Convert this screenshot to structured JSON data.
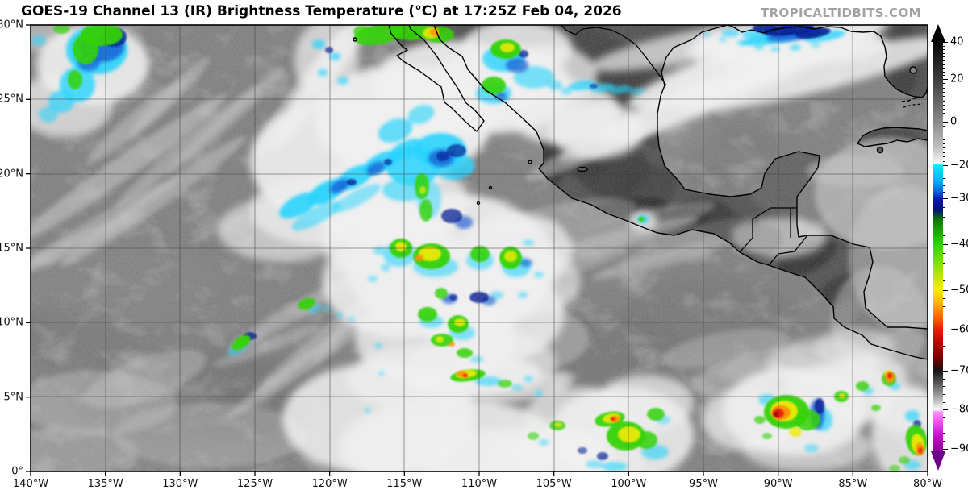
{
  "header": {
    "title": "GOES-19 Channel 13 (IR) Brightness Temperature (°C) at 17:25Z Feb 04, 2026",
    "watermark": "TROPICALTIDBITS.COM"
  },
  "axes": {
    "lat_labels": [
      "30°N",
      "25°N",
      "20°N",
      "15°N",
      "10°N",
      "5°N",
      "0°"
    ],
    "lon_labels": [
      "140°W",
      "135°W",
      "130°W",
      "125°W",
      "120°W",
      "115°W",
      "110°W",
      "105°W",
      "100°W",
      "95°W",
      "90°W",
      "85°W",
      "80°W"
    ]
  },
  "colorbar": {
    "unit": "°C",
    "ticks": [
      {
        "label": "40",
        "value": 40,
        "pos": 0.0
      },
      {
        "label": "20",
        "value": 20,
        "pos": 0.0906
      },
      {
        "label": "0",
        "value": 0,
        "pos": 0.195
      },
      {
        "label": "−20",
        "value": -20,
        "pos": 0.301
      },
      {
        "label": "−30",
        "value": -30,
        "pos": 0.382
      },
      {
        "label": "−40",
        "value": -40,
        "pos": 0.494
      },
      {
        "label": "−50",
        "value": -50,
        "pos": 0.606
      },
      {
        "label": "−60",
        "value": -60,
        "pos": 0.703
      },
      {
        "label": "−70",
        "value": -70,
        "pos": 0.803
      },
      {
        "label": "−80",
        "value": -80,
        "pos": 0.898
      },
      {
        "label": "−90",
        "value": -90,
        "pos": 0.994
      }
    ],
    "minor_tick_step": 2,
    "gradient_stops": [
      [
        0,
        "#050505"
      ],
      [
        9,
        "#3c3c3c"
      ],
      [
        19.5,
        "#8a8a8a"
      ],
      [
        26,
        "#c4c4c4"
      ],
      [
        29.6,
        "#f8f8f8"
      ],
      [
        30.1,
        "#00eeff"
      ],
      [
        34,
        "#00b2f2"
      ],
      [
        36.5,
        "#0066dd"
      ],
      [
        38.2,
        "#0d1cb4"
      ],
      [
        41,
        "#001078"
      ],
      [
        43.5,
        "#0c7a00"
      ],
      [
        49.4,
        "#2fd400"
      ],
      [
        55,
        "#93e400"
      ],
      [
        60.6,
        "#ffec00"
      ],
      [
        64,
        "#ffb000"
      ],
      [
        67,
        "#ff6a00"
      ],
      [
        70.3,
        "#f01800"
      ],
      [
        74,
        "#bb0000"
      ],
      [
        77.5,
        "#6e0000"
      ],
      [
        80.3,
        "#141414"
      ],
      [
        83.5,
        "#5c5c5c"
      ],
      [
        86.5,
        "#a0a0a0"
      ],
      [
        89.3,
        "#ededed"
      ],
      [
        89.8,
        "#ffffff"
      ],
      [
        90.4,
        "#ff92ff"
      ],
      [
        93,
        "#ef4fef"
      ],
      [
        96,
        "#c913c9"
      ],
      [
        99.4,
        "#95009f"
      ],
      [
        100,
        "#8a0099"
      ]
    ],
    "arrow_top_color": "#000000",
    "arrow_bottom_color": "#70008c"
  },
  "map_features": [
    {
      "name": "extratropical-storm-cold-tops",
      "approx": "28N 137W"
    },
    {
      "name": "frontal-cloud-band-west-of-baja",
      "approx": "18N–27N, 108W–125W"
    },
    {
      "name": "deep-convection-cluster",
      "approx": "13N–16N, 108W–114W"
    },
    {
      "name": "itcz-convection-line",
      "approx": "3N–8N, 95W–112W"
    },
    {
      "name": "strong-convection-cluster",
      "approx": "4N–6N, 89W–91W"
    },
    {
      "name": "convection-near-right-edge",
      "approx": "5N–7N, 80W"
    },
    {
      "name": "cold-cloud-band-northern-gulf",
      "approx": "30N, 88W–93W"
    },
    {
      "name": "mexico-central-america-landmass"
    },
    {
      "name": "baja-california-peninsula"
    },
    {
      "name": "yucatan-peninsula"
    },
    {
      "name": "florida-peninsula"
    },
    {
      "name": "cuba"
    }
  ]
}
